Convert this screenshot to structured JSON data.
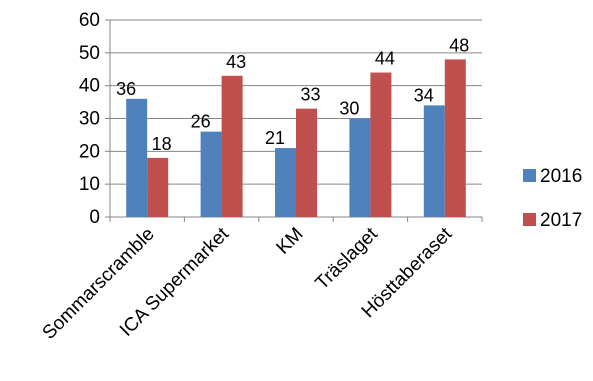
{
  "chart_data": {
    "type": "bar",
    "title": "",
    "xlabel": "",
    "ylabel": "",
    "categories": [
      "Sommarscramble",
      "ICA Supermarket",
      "KM",
      "Träslaget",
      "Hösttaberaset"
    ],
    "series": [
      {
        "name": "2016",
        "values": [
          36,
          26,
          21,
          30,
          34
        ],
        "color": "#4F81BD"
      },
      {
        "name": "2017",
        "values": [
          18,
          43,
          33,
          44,
          48
        ],
        "color": "#C0504D"
      }
    ],
    "ylim": [
      0,
      60
    ],
    "yticks": [
      "0",
      "10",
      "20",
      "30",
      "40",
      "50",
      "60"
    ],
    "grid": true,
    "legend": "right",
    "data_labels": true
  }
}
